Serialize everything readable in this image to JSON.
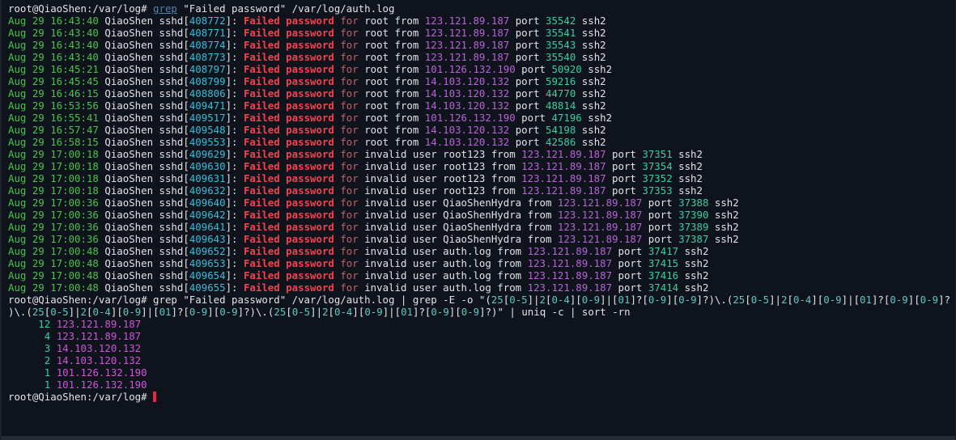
{
  "colors": {
    "background": "#0f131c",
    "foreground": "#e2e4e9",
    "timestamp_green": "#4bc34b",
    "pid_cyan": "#35bedb",
    "port_teal": "#36d0a2",
    "fail_red": "#f2424e",
    "for_pink": "#c0636d",
    "ip_magenta": "#b863d6",
    "result_ip_magenta": "#cf55d9",
    "grep_blue": "#5a80ad",
    "regex_digit_teal": "#5cc9c2",
    "cursor_red": "#e8273a"
  },
  "prompt": "root@QiaoShen:/var/log# ",
  "command1": {
    "grep": "grep",
    "rest": " \"Failed password\" /var/log/auth.log"
  },
  "log_constants": {
    "host_pre": " QiaoShen sshd[",
    "bracket_close": "]: ",
    "fail": "Failed password",
    "for": " for ",
    "from": " from ",
    "port": " port ",
    "ssh": " ssh2"
  },
  "log_lines": [
    {
      "time": "Aug 29 16:43:40",
      "pid": "408772",
      "user": "root",
      "ip": "123.121.89.187",
      "port": "35542"
    },
    {
      "time": "Aug 29 16:43:40",
      "pid": "408771",
      "user": "root",
      "ip": "123.121.89.187",
      "port": "35541"
    },
    {
      "time": "Aug 29 16:43:40",
      "pid": "408774",
      "user": "root",
      "ip": "123.121.89.187",
      "port": "35543"
    },
    {
      "time": "Aug 29 16:43:40",
      "pid": "408773",
      "user": "root",
      "ip": "123.121.89.187",
      "port": "35540"
    },
    {
      "time": "Aug 29 16:45:21",
      "pid": "408797",
      "user": "root",
      "ip": "101.126.132.190",
      "port": "50920"
    },
    {
      "time": "Aug 29 16:45:45",
      "pid": "408799",
      "user": "root",
      "ip": "14.103.120.132",
      "port": "59216"
    },
    {
      "time": "Aug 29 16:46:15",
      "pid": "408806",
      "user": "root",
      "ip": "14.103.120.132",
      "port": "44770"
    },
    {
      "time": "Aug 29 16:53:56",
      "pid": "409471",
      "user": "root",
      "ip": "14.103.120.132",
      "port": "48814"
    },
    {
      "time": "Aug 29 16:55:41",
      "pid": "409517",
      "user": "root",
      "ip": "101.126.132.190",
      "port": "47196"
    },
    {
      "time": "Aug 29 16:57:47",
      "pid": "409548",
      "user": "root",
      "ip": "14.103.120.132",
      "port": "54198"
    },
    {
      "time": "Aug 29 16:58:15",
      "pid": "409553",
      "user": "root",
      "ip": "14.103.120.132",
      "port": "42586"
    },
    {
      "time": "Aug 29 17:00:18",
      "pid": "409629",
      "user": "invalid user root123",
      "ip": "123.121.89.187",
      "port": "37351"
    },
    {
      "time": "Aug 29 17:00:18",
      "pid": "409630",
      "user": "invalid user root123",
      "ip": "123.121.89.187",
      "port": "37354"
    },
    {
      "time": "Aug 29 17:00:18",
      "pid": "409631",
      "user": "invalid user root123",
      "ip": "123.121.89.187",
      "port": "37352"
    },
    {
      "time": "Aug 29 17:00:18",
      "pid": "409632",
      "user": "invalid user root123",
      "ip": "123.121.89.187",
      "port": "37353"
    },
    {
      "time": "Aug 29 17:00:36",
      "pid": "409640",
      "user": "invalid user QiaoShenHydra",
      "ip": "123.121.89.187",
      "port": "37388"
    },
    {
      "time": "Aug 29 17:00:36",
      "pid": "409642",
      "user": "invalid user QiaoShenHydra",
      "ip": "123.121.89.187",
      "port": "37390"
    },
    {
      "time": "Aug 29 17:00:36",
      "pid": "409641",
      "user": "invalid user QiaoShenHydra",
      "ip": "123.121.89.187",
      "port": "37389"
    },
    {
      "time": "Aug 29 17:00:36",
      "pid": "409643",
      "user": "invalid user QiaoShenHydra",
      "ip": "123.121.89.187",
      "port": "37387"
    },
    {
      "time": "Aug 29 17:00:48",
      "pid": "409652",
      "user": "invalid user auth.log",
      "ip": "123.121.89.187",
      "port": "37417"
    },
    {
      "time": "Aug 29 17:00:48",
      "pid": "409653",
      "user": "invalid user auth.log",
      "ip": "123.121.89.187",
      "port": "37415"
    },
    {
      "time": "Aug 29 17:00:48",
      "pid": "409654",
      "user": "invalid user auth.log",
      "ip": "123.121.89.187",
      "port": "37416"
    },
    {
      "time": "Aug 29 17:00:48",
      "pid": "409655",
      "user": "invalid user auth.log",
      "ip": "123.121.89.187",
      "port": "37414"
    }
  ],
  "command2": {
    "row1": "grep \"Failed password\" /var/log/auth.log | grep -E -o \"(25[0-5]|2[0-4][0-9]|[01]?[0-9][0-9]?)\\.(25[0-5]|2[0-4][0-9]|[01]?[0-9][0-9]?",
    "row2": ")\\.(25[0-5]|2[0-4][0-9]|[01]?[0-9][0-9]?)\\.(25[0-5]|2[0-4][0-9]|[01]?[0-9][0-9]?)\" | uniq -c | sort -rn"
  },
  "results": [
    {
      "count": "     12",
      "ip": "123.121.89.187"
    },
    {
      "count": "      4",
      "ip": "123.121.89.187"
    },
    {
      "count": "      3",
      "ip": "14.103.120.132"
    },
    {
      "count": "      2",
      "ip": "14.103.120.132"
    },
    {
      "count": "      1",
      "ip": "101.126.132.190"
    },
    {
      "count": "      1",
      "ip": "101.126.132.190"
    }
  ]
}
